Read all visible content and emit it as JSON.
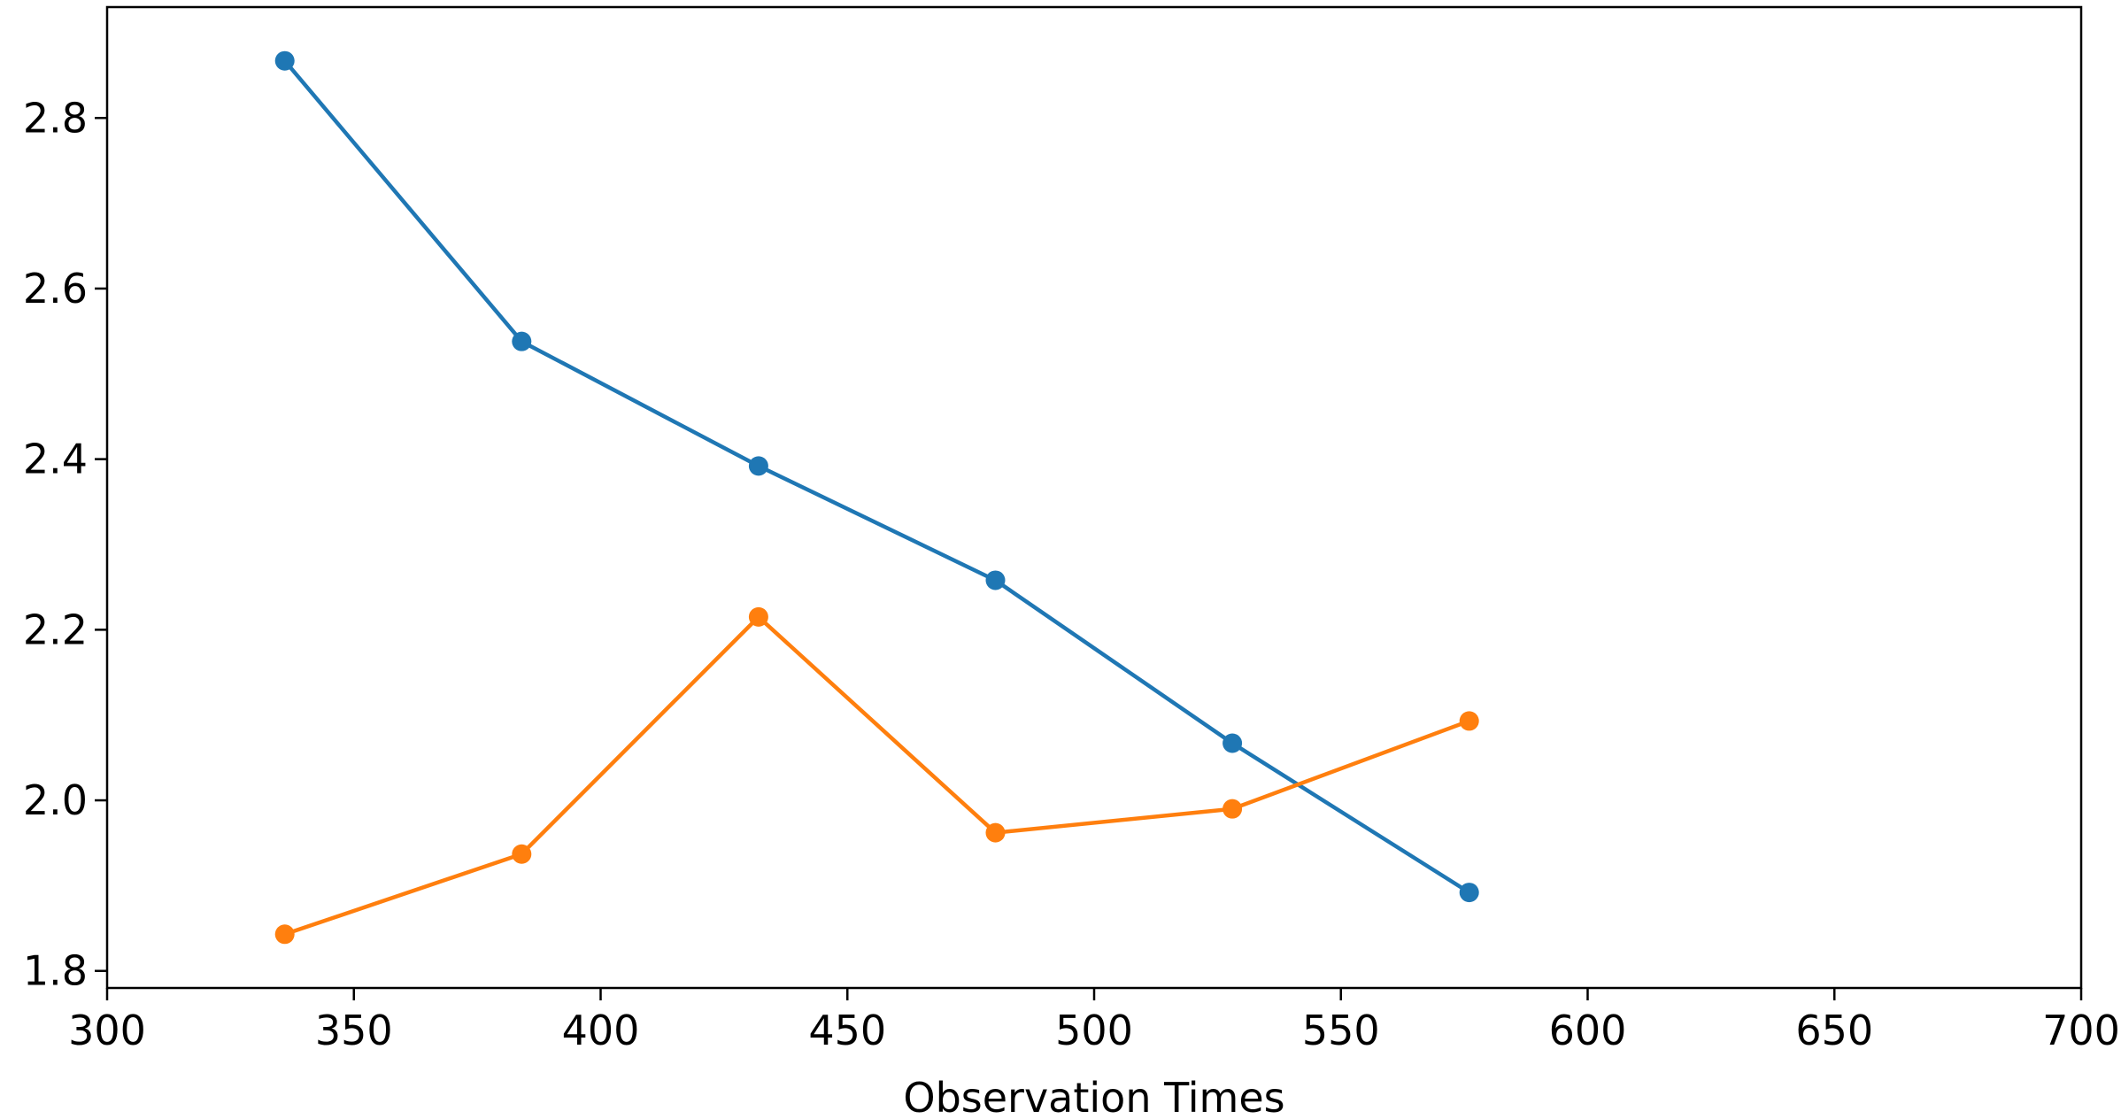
{
  "chart_data": {
    "type": "line",
    "title": "",
    "xlabel": "Observation Times",
    "ylabel": "",
    "xlim": [
      300,
      700
    ],
    "ylim": [
      1.78,
      2.93
    ],
    "grid": false,
    "legend": "none",
    "x_ticks": [
      300,
      350,
      400,
      450,
      500,
      550,
      600,
      650,
      700
    ],
    "x_tick_labels": [
      "300",
      "350",
      "400",
      "450",
      "500",
      "550",
      "600",
      "650",
      "700"
    ],
    "y_ticks": [
      1.8,
      2.0,
      2.2,
      2.4,
      2.6,
      2.8
    ],
    "y_tick_labels": [
      "1.8",
      "2.0",
      "2.2",
      "2.4",
      "2.6",
      "2.8"
    ],
    "x": [
      336,
      384,
      432,
      480,
      528,
      576
    ],
    "series": [
      {
        "color": "#1f77b4",
        "marker": "circle",
        "values": [
          2.867,
          2.538,
          2.392,
          2.258,
          2.067,
          1.892
        ]
      },
      {
        "color": "#ff7f0e",
        "marker": "circle",
        "values": [
          1.843,
          1.937,
          2.215,
          1.962,
          1.99,
          2.093
        ]
      }
    ]
  }
}
